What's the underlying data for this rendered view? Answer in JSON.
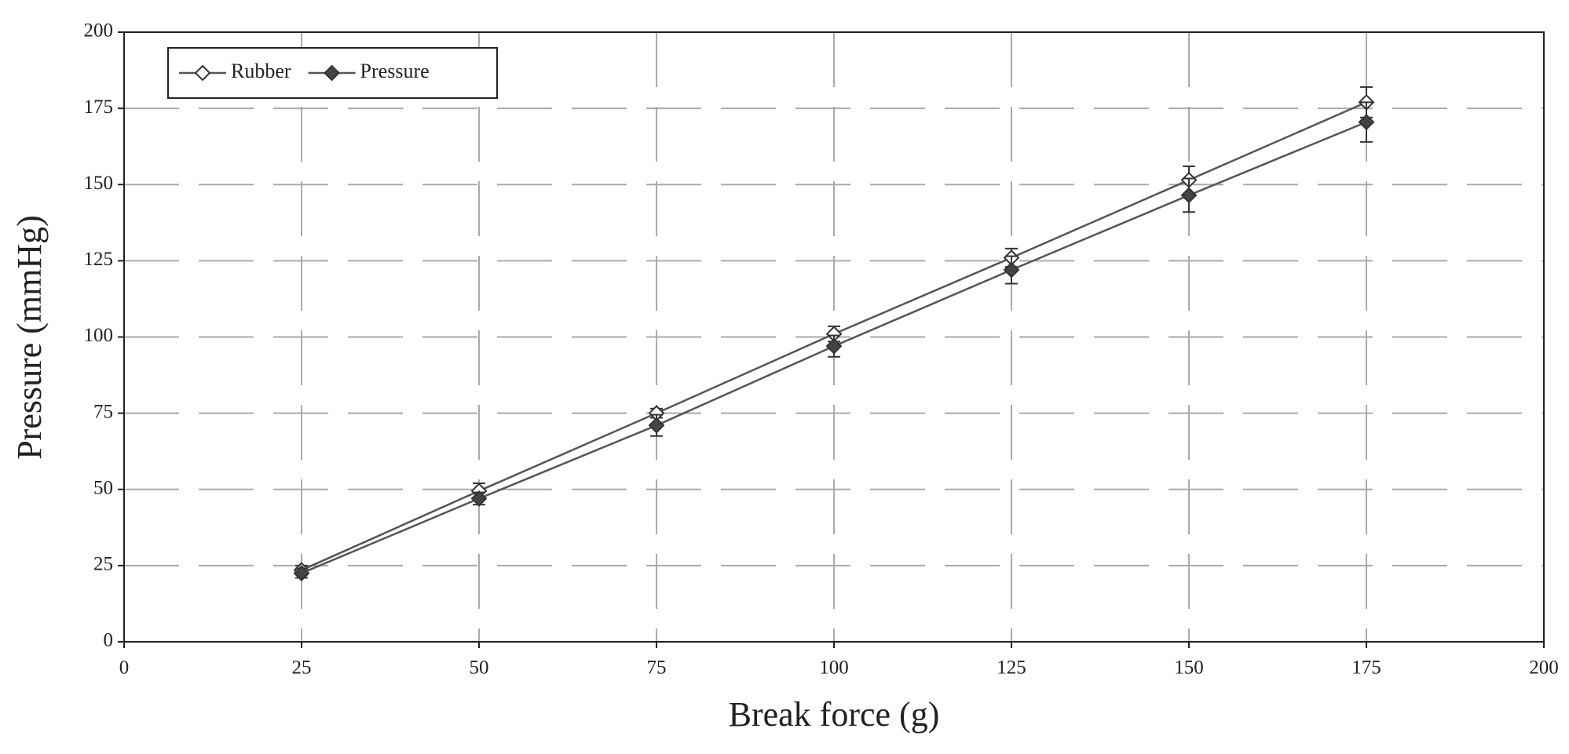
{
  "chart_data": {
    "type": "line",
    "x_label": "Break force (g)",
    "y_label": "Pressure (mmHg)",
    "x": [
      25,
      50,
      75,
      100,
      125,
      150,
      175
    ],
    "series": [
      {
        "name": "Rubber",
        "color": "#555555",
        "marker_fill": "#ffffff",
        "values": [
          23.5,
          49.5,
          75,
          101,
          126,
          151.5,
          177
        ],
        "errors": [
          1.5,
          2.5,
          1.5,
          2.5,
          3,
          4.5,
          5
        ]
      },
      {
        "name": "Pressure",
        "color": "#555555",
        "marker_fill": "#444444",
        "values": [
          22.5,
          47,
          71,
          97,
          122,
          146.5,
          170.5
        ],
        "errors": [
          1.5,
          2,
          3.5,
          3.5,
          4.5,
          5.5,
          6.5
        ]
      }
    ],
    "xlim": [
      0,
      200
    ],
    "xticks": [
      0,
      25,
      50,
      75,
      100,
      125,
      150,
      175,
      200
    ],
    "ylim": [
      0,
      200
    ],
    "yticks": [
      0,
      25,
      50,
      75,
      100,
      125,
      150,
      175,
      200
    ],
    "grid": true,
    "legend": "upper-left"
  }
}
